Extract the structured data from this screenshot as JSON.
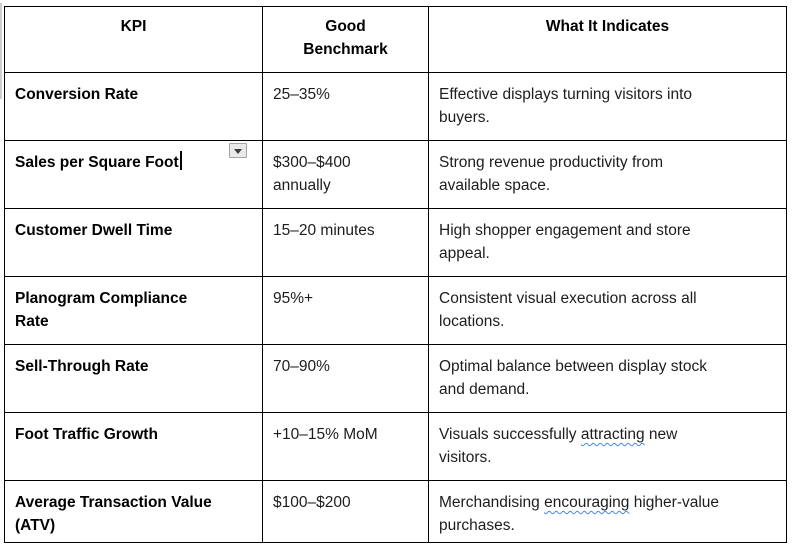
{
  "page": {
    "background_color": "#ffffff",
    "table_border_color": "#000000",
    "spellcheck_underline_color": "#4a86e8"
  },
  "widgets": {
    "dropdown_icon": "chevron-down",
    "text_cursor_visible_after": "Sales per Square Foot"
  },
  "table": {
    "header": {
      "kpi": "KPI",
      "benchmark": "Good\nBenchmark",
      "indicates": "What It Indicates"
    },
    "rows": [
      {
        "kpi": "Conversion Rate",
        "benchmark": "25–35%",
        "indicates": "Effective displays turning visitors into\nbuyers."
      },
      {
        "kpi": "Sales per Square Foot",
        "benchmark": "$300–$400\nannually",
        "indicates": "Strong revenue productivity from\navailable space."
      },
      {
        "kpi": "Customer Dwell Time",
        "benchmark": "15–20 minutes",
        "indicates": "High shopper engagement and store\nappeal."
      },
      {
        "kpi": "Planogram Compliance\nRate",
        "benchmark": "95%+",
        "indicates": "Consistent visual execution across all\nlocations."
      },
      {
        "kpi": "Sell-Through Rate",
        "benchmark": "70–90%",
        "indicates": "Optimal balance between display stock\nand demand."
      },
      {
        "kpi": "Foot Traffic Growth",
        "benchmark": "+10–15% MoM",
        "indicates": [
          "Visuals successfully ",
          "attracting",
          " new\nvisitors."
        ]
      },
      {
        "kpi": "Average Transaction Value\n(ATV)",
        "benchmark": "$100–$200",
        "indicates": [
          "Merchandising ",
          "encouraging",
          " higher-value\npurchases."
        ]
      }
    ]
  }
}
